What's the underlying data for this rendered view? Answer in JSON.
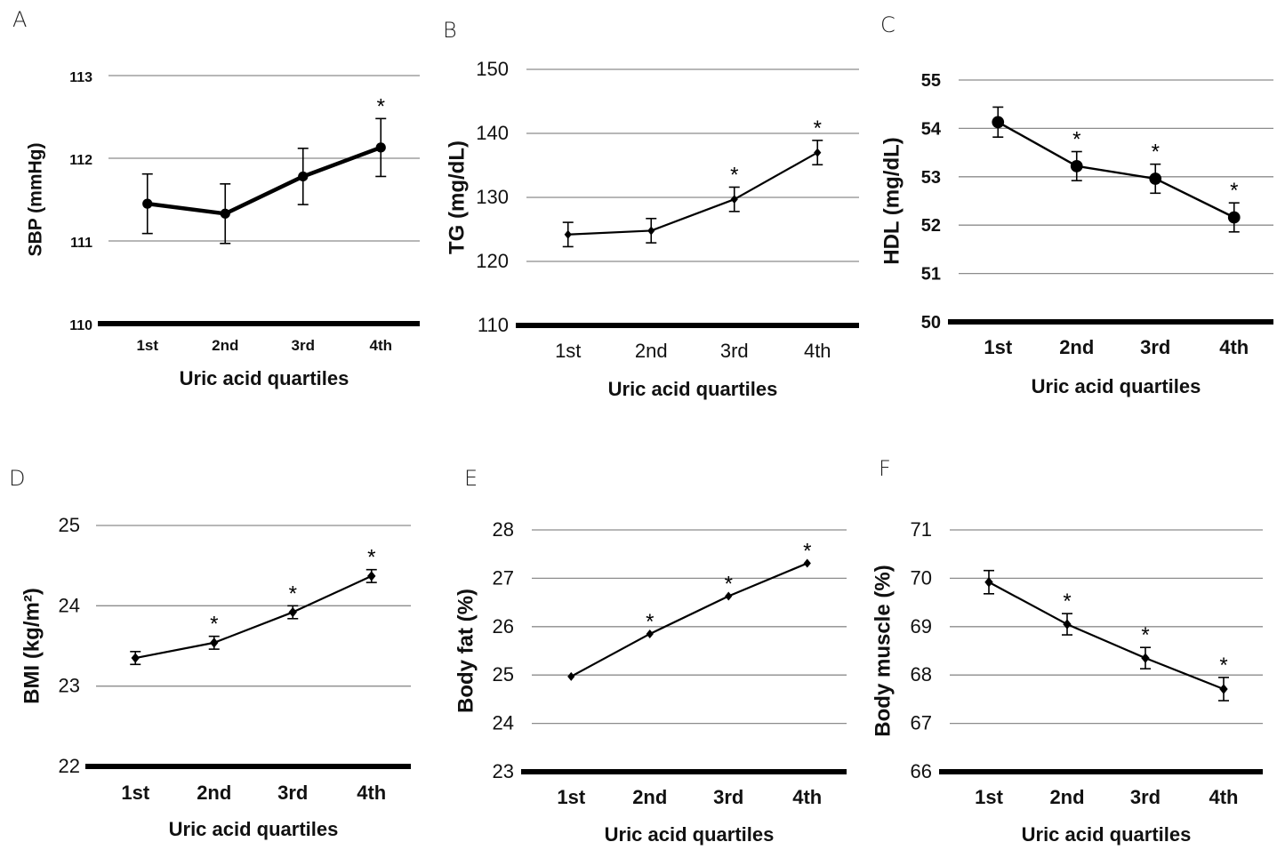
{
  "chart_data": [
    {
      "panel": "A",
      "type": "line",
      "categories": [
        "1st",
        "2nd",
        "3rd",
        "4th"
      ],
      "xlabel": "Uric acid quartiles",
      "ylabel": "SBP (mmHg)",
      "ylim": [
        110,
        113
      ],
      "yticks": [
        "110",
        "111",
        "112",
        "113"
      ],
      "grid": true,
      "values": [
        111.45,
        111.33,
        111.78,
        112.13
      ],
      "errors": [
        0.36,
        0.36,
        0.34,
        0.35
      ],
      "significant": [
        false,
        false,
        false,
        true
      ],
      "significance_mark": "*",
      "marker": "circle"
    },
    {
      "panel": "B",
      "type": "line",
      "categories": [
        "1st",
        "2nd",
        "3rd",
        "4th"
      ],
      "xlabel": "Uric acid quartiles",
      "ylabel": "TG (mg/dL)",
      "ylim": [
        110,
        150
      ],
      "yticks": [
        "110",
        "120",
        "130",
        "140",
        "150"
      ],
      "grid": true,
      "values": [
        124.2,
        124.8,
        129.7,
        137.0
      ],
      "errors": [
        1.9,
        1.9,
        1.9,
        1.9
      ],
      "significant": [
        false,
        false,
        true,
        true
      ],
      "significance_mark": "*",
      "marker": "diamond"
    },
    {
      "panel": "C",
      "type": "line",
      "categories": [
        "1st",
        "2nd",
        "3rd",
        "4th"
      ],
      "xlabel": "Uric acid quartiles",
      "ylabel": "HDL (mg/dL)",
      "ylim": [
        50,
        55
      ],
      "yticks": [
        "50",
        "51",
        "52",
        "53",
        "54",
        "55"
      ],
      "grid": true,
      "values": [
        54.13,
        53.22,
        52.96,
        52.16
      ],
      "errors": [
        0.31,
        0.3,
        0.3,
        0.3
      ],
      "significant": [
        false,
        true,
        true,
        true
      ],
      "significance_mark": "*",
      "marker": "circle"
    },
    {
      "panel": "D",
      "type": "line",
      "categories": [
        "1st",
        "2nd",
        "3rd",
        "4th"
      ],
      "xlabel": "Uric acid quartiles",
      "ylabel": "BMI (kg/m²)",
      "ylim": [
        22,
        25
      ],
      "yticks": [
        "22",
        "23",
        "24",
        "25"
      ],
      "grid": true,
      "values": [
        23.35,
        23.54,
        23.92,
        24.37
      ],
      "errors": [
        0.08,
        0.08,
        0.08,
        0.08
      ],
      "significant": [
        false,
        true,
        true,
        true
      ],
      "significance_mark": "*",
      "marker": "diamond"
    },
    {
      "panel": "E",
      "type": "line",
      "categories": [
        "1st",
        "2nd",
        "3rd",
        "4th"
      ],
      "xlabel": "Uric acid quartiles",
      "ylabel": "Body fat (%)",
      "ylim": [
        23,
        28
      ],
      "yticks": [
        "23",
        "24",
        "25",
        "26",
        "27",
        "28"
      ],
      "grid": true,
      "values": [
        24.97,
        25.85,
        26.63,
        27.31
      ],
      "errors": [
        0,
        0,
        0,
        0
      ],
      "significant": [
        false,
        true,
        true,
        true
      ],
      "significance_mark": "*",
      "marker": "diamond"
    },
    {
      "panel": "F",
      "type": "line",
      "categories": [
        "1st",
        "2nd",
        "3rd",
        "4th"
      ],
      "xlabel": "Uric acid quartiles",
      "ylabel": "Body muscle (%)",
      "ylim": [
        66,
        71
      ],
      "yticks": [
        "66",
        "67",
        "68",
        "69",
        "70",
        "71"
      ],
      "grid": true,
      "values": [
        69.92,
        69.05,
        68.35,
        67.71
      ],
      "errors": [
        0.24,
        0.22,
        0.22,
        0.24
      ],
      "significant": [
        false,
        true,
        true,
        true
      ],
      "significance_mark": "*",
      "marker": "diamond"
    }
  ]
}
